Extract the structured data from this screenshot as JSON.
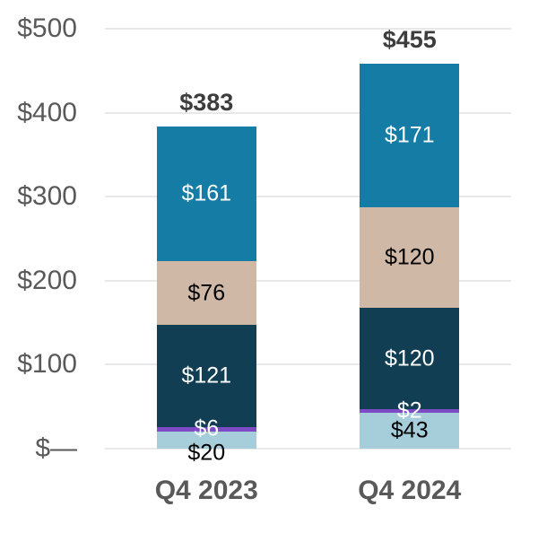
{
  "chart_data": {
    "type": "bar",
    "stacked": true,
    "categories": [
      "Q4 2023",
      "Q4 2024"
    ],
    "series": [
      {
        "name": "light-blue-segment",
        "color": "#a5cdda",
        "label_color": "#000000",
        "values": [
          20,
          43
        ],
        "labels": [
          "$20",
          "$43"
        ],
        "label_dy": [
          14,
          0
        ]
      },
      {
        "name": "purple-segment",
        "color": "#7d4bc6",
        "label_color": "#ffffff",
        "values": [
          6,
          2
        ],
        "labels": [
          "$6",
          "$2"
        ],
        "label_dy": [
          0,
          0
        ]
      },
      {
        "name": "dark-navy-segment",
        "color": "#113e53",
        "label_color": "#ffffff",
        "values": [
          121,
          120
        ],
        "labels": [
          "$121",
          "$120"
        ],
        "label_dy": [
          0,
          0
        ]
      },
      {
        "name": "tan-segment",
        "color": "#d0b8a6",
        "label_color": "#000000",
        "values": [
          76,
          120
        ],
        "labels": [
          "$76",
          "$120"
        ],
        "label_dy": [
          0,
          0
        ]
      },
      {
        "name": "teal-segment",
        "color": "#157da5",
        "label_color": "#ffffff",
        "values": [
          161,
          171
        ],
        "labels": [
          "$161",
          "$171"
        ],
        "label_dy": [
          0,
          0
        ]
      }
    ],
    "total_labels": [
      "$383",
      "$455"
    ],
    "y_axis": {
      "ticks": [
        {
          "label": "$500",
          "value": 500
        },
        {
          "label": "$400",
          "value": 400
        },
        {
          "label": "$300",
          "value": 300
        },
        {
          "label": "$200",
          "value": 200
        },
        {
          "label": "$100",
          "value": 100
        },
        {
          "label": "$—",
          "value": 0
        }
      ],
      "ylim": [
        0,
        500
      ]
    },
    "grid": true,
    "legend": "none",
    "palette": {
      "axis_text": "#595959",
      "category_text": "#595959",
      "total_text": "#3d3d3d",
      "gridline": "#e8e8e8",
      "background": "#ffffff"
    }
  }
}
